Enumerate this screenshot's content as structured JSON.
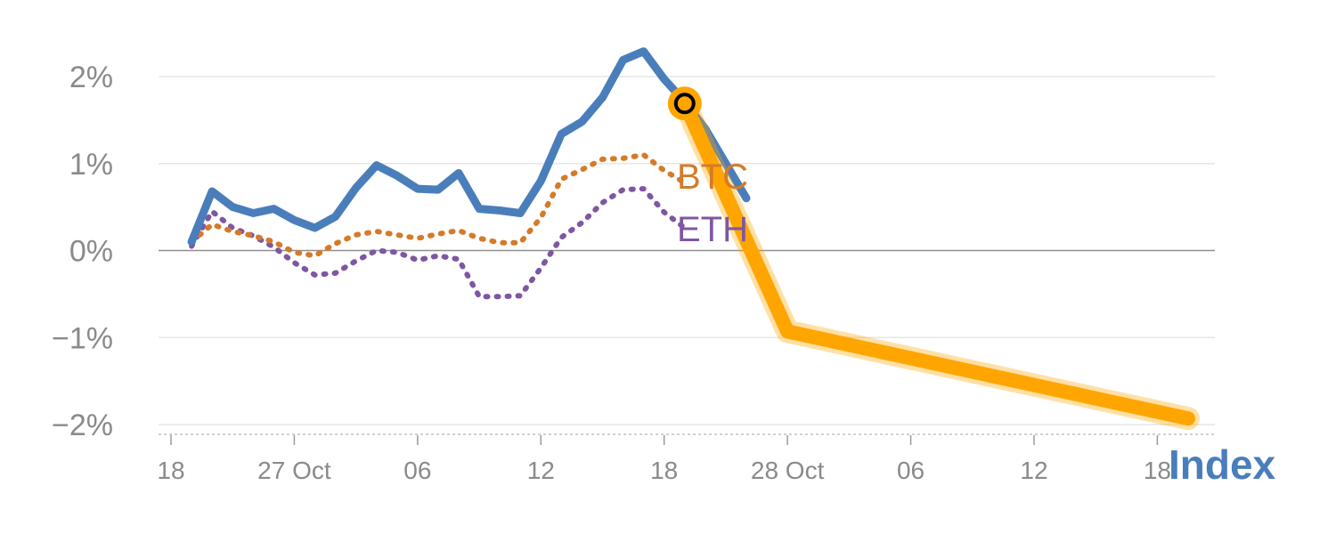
{
  "chart_data": {
    "type": "line",
    "title": "",
    "xlabel": "Index",
    "ylabel": "",
    "ylim": [
      -2,
      2
    ],
    "yticks": [
      {
        "value": 2,
        "label": "2%"
      },
      {
        "value": 1,
        "label": "1%"
      },
      {
        "value": 0,
        "label": "0%"
      },
      {
        "value": -1,
        "label": "−1%"
      },
      {
        "value": -2,
        "label": "−2%"
      }
    ],
    "xlim": [
      0,
      49.5
    ],
    "xticks": [
      {
        "value": 0,
        "label": "18"
      },
      {
        "value": 6,
        "label": "27 Oct"
      },
      {
        "value": 12,
        "label": "06"
      },
      {
        "value": 18,
        "label": "12"
      },
      {
        "value": 24,
        "label": "18"
      },
      {
        "value": 30,
        "label": "28 Oct"
      },
      {
        "value": 36,
        "label": "06"
      },
      {
        "value": 42,
        "label": "12"
      },
      {
        "value": 48,
        "label": "18"
      }
    ],
    "series": [
      {
        "name": "Index",
        "color": "#4a7ebb",
        "style": "solid",
        "x": [
          1,
          2,
          3,
          4,
          5,
          6,
          7,
          8,
          9,
          10,
          11,
          12,
          13,
          14,
          15,
          16,
          17,
          18,
          19,
          20,
          21,
          22,
          23,
          24,
          25,
          26,
          27,
          28
        ],
        "values": [
          0.1,
          0.68,
          0.5,
          0.43,
          0.48,
          0.35,
          0.26,
          0.39,
          0.72,
          0.98,
          0.86,
          0.71,
          0.7,
          0.89,
          0.48,
          0.46,
          0.43,
          0.8,
          1.34,
          1.48,
          1.76,
          2.19,
          2.29,
          1.97,
          1.71,
          1.4,
          1.0,
          0.6
        ]
      },
      {
        "name": "BTC",
        "color": "#d47b2a",
        "style": "dotted",
        "x": [
          1,
          2,
          3,
          4,
          5,
          6,
          7,
          8,
          9,
          10,
          11,
          12,
          13,
          14,
          15,
          16,
          17,
          18,
          19,
          20,
          21,
          22,
          23,
          24,
          25
        ],
        "values": [
          0.1,
          0.3,
          0.22,
          0.17,
          0.1,
          -0.02,
          -0.06,
          0.08,
          0.18,
          0.22,
          0.18,
          0.14,
          0.19,
          0.23,
          0.14,
          0.09,
          0.09,
          0.38,
          0.82,
          0.93,
          1.05,
          1.06,
          1.1,
          0.92,
          0.78
        ]
      },
      {
        "name": "ETH",
        "color": "#7e57a2",
        "style": "dotted",
        "x": [
          1,
          2,
          3,
          4,
          5,
          6,
          7,
          8,
          9,
          10,
          11,
          12,
          13,
          14,
          15,
          16,
          17,
          18,
          19,
          20,
          21,
          22,
          23,
          24,
          25
        ],
        "values": [
          0.05,
          0.45,
          0.26,
          0.17,
          0.04,
          -0.14,
          -0.28,
          -0.26,
          -0.12,
          0.0,
          -0.02,
          -0.11,
          -0.06,
          -0.1,
          -0.53,
          -0.53,
          -0.52,
          -0.2,
          0.15,
          0.32,
          0.55,
          0.7,
          0.71,
          0.44,
          0.26
        ]
      },
      {
        "name": "Index (highlight)",
        "color": "#ffa500",
        "style": "solid",
        "x": [
          25,
          30,
          49.5
        ],
        "values": [
          1.69,
          -0.93,
          -1.93
        ]
      }
    ],
    "marker": {
      "x": 25,
      "y": 1.69,
      "fill": "#ffa500",
      "ring": "#000000"
    },
    "labels": [
      {
        "text": "BTC",
        "color": "#d47b2a"
      },
      {
        "text": "ETH",
        "color": "#7e57a2"
      },
      {
        "text": "Index",
        "color": "#4a7ebb"
      }
    ]
  }
}
